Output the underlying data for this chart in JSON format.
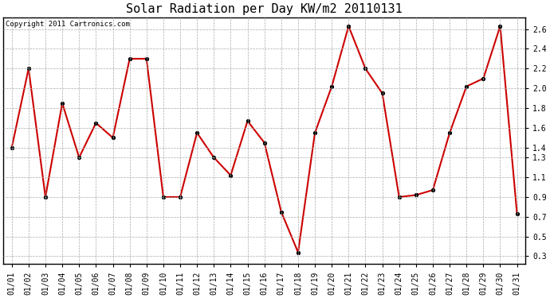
{
  "title": "Solar Radiation per Day KW/m2 20110131",
  "copyright_text": "Copyright 2011 Cartronics.com",
  "dates": [
    "01/01",
    "01/02",
    "01/03",
    "01/04",
    "01/05",
    "01/06",
    "01/07",
    "01/08",
    "01/09",
    "01/10",
    "01/11",
    "01/12",
    "01/13",
    "01/14",
    "01/15",
    "01/16",
    "01/17",
    "01/18",
    "01/19",
    "01/20",
    "01/21",
    "01/22",
    "01/23",
    "01/24",
    "01/25",
    "01/26",
    "01/27",
    "01/28",
    "01/29",
    "01/30",
    "01/31"
  ],
  "values": [
    1.4,
    2.2,
    0.9,
    1.85,
    1.3,
    1.65,
    1.5,
    2.3,
    2.3,
    0.9,
    0.9,
    1.55,
    1.3,
    1.12,
    1.67,
    1.45,
    0.75,
    0.34,
    1.55,
    2.02,
    2.63,
    2.2,
    1.95,
    0.9,
    0.92,
    0.97,
    1.55,
    2.02,
    2.1,
    2.63,
    0.73
  ],
  "line_color": "#cc0000",
  "marker": "o",
  "marker_size": 3,
  "bg_color": "#ffffff",
  "plot_bg_color": "#ffffff",
  "grid_color": "#aaaaaa",
  "ylim": [
    0.22,
    2.72
  ],
  "yticks": [
    0.3,
    0.5,
    0.7,
    0.9,
    1.1,
    1.3,
    1.4,
    1.6,
    1.8,
    2.0,
    2.2,
    2.4,
    2.6
  ],
  "ytick_labels": [
    "0.3",
    "0.5",
    "0.7",
    "0.9",
    "1.1",
    "1.3",
    "1.4",
    "1.6",
    "1.8",
    "2.0",
    "2.2",
    "2.4",
    "2.6"
  ],
  "title_fontsize": 11,
  "tick_fontsize": 7,
  "copyright_fontsize": 6.5
}
